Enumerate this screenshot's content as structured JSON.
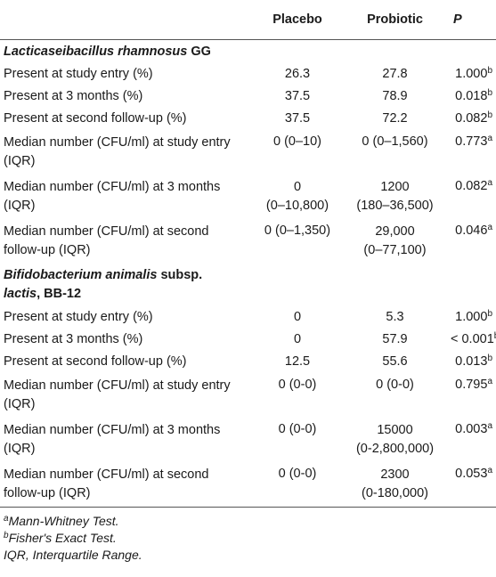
{
  "header": {
    "col0": "",
    "placebo": "Placebo",
    "probiotic": "Probiotic",
    "p": "P"
  },
  "sections": [
    {
      "title_italic": "Lacticaseibacillus rhamnosus",
      "title_rest": " GG",
      "rows": [
        {
          "label": "Present at study entry (%)",
          "placebo": "26.3",
          "probiotic": "27.8",
          "p": "1.000",
          "sup": "b"
        },
        {
          "label": "Present at 3 months (%)",
          "placebo": "37.5",
          "probiotic": "78.9",
          "p": "0.018",
          "sup": "b"
        },
        {
          "label": "Present at second follow-up (%)",
          "placebo": "37.5",
          "probiotic": "72.2",
          "p": "0.082",
          "sup": "b"
        },
        {
          "label1": "Median number (CFU/ml) at study entry",
          "label2": "(IQR)",
          "placebo": "0 (0–10)",
          "probiotic": "0 (0–1,560)",
          "p": "0.773",
          "sup": "a"
        },
        {
          "label1": "Median number (CFU/ml) at 3 months",
          "label2": "(IQR)",
          "placebo1": "0",
          "placebo2": "(0–10,800)",
          "probiotic1": "1200",
          "probiotic2": "(180–36,500)",
          "p": "0.082",
          "sup": "a"
        },
        {
          "label1": "Median number (CFU/ml) at second",
          "label2": "follow-up (IQR)",
          "placebo": "0 (0–1,350)",
          "probiotic1": "29,000",
          "probiotic2": "(0–77,100)",
          "p": "0.046",
          "sup": "a"
        }
      ]
    },
    {
      "title_line1_italic": "Bifidobacterium animalis",
      "title_line1_rest": " subsp.",
      "title_line2_italic": "lactis",
      "title_line2_rest": ", BB-12",
      "rows": [
        {
          "label": "Present at study entry (%)",
          "placebo": "0",
          "probiotic": "5.3",
          "p": "1.000",
          "sup": "b"
        },
        {
          "label": "Present at 3 months (%)",
          "placebo": "0",
          "probiotic": "57.9",
          "p": "< 0.001",
          "sup": "b"
        },
        {
          "label": "Present at second follow-up (%)",
          "placebo": "12.5",
          "probiotic": "55.6",
          "p": "0.013",
          "sup": "b"
        },
        {
          "label1": "Median number (CFU/ml) at study entry",
          "label2": "(IQR)",
          "placebo": "0 (0-0)",
          "probiotic": "0 (0-0)",
          "p": "0.795",
          "sup": "a"
        },
        {
          "label1": "Median number (CFU/ml) at 3 months",
          "label2": "(IQR)",
          "placebo": "0 (0-0)",
          "probiotic1": "15000",
          "probiotic2": "(0-2,800,000)",
          "p": "0.003",
          "sup": "a"
        },
        {
          "label1": "Median number (CFU/ml) at second",
          "label2": "follow-up (IQR)",
          "placebo": "0 (0-0)",
          "probiotic1": "2300",
          "probiotic2": "(0-180,000)",
          "p": "0.053",
          "sup": "a"
        }
      ]
    }
  ],
  "footnotes": [
    {
      "mark": "a",
      "text": "Mann-Whitney Test."
    },
    {
      "mark": "b",
      "text": "Fisher's Exact Test."
    },
    {
      "mark": "",
      "text": "IQR, Interquartile Range."
    }
  ]
}
